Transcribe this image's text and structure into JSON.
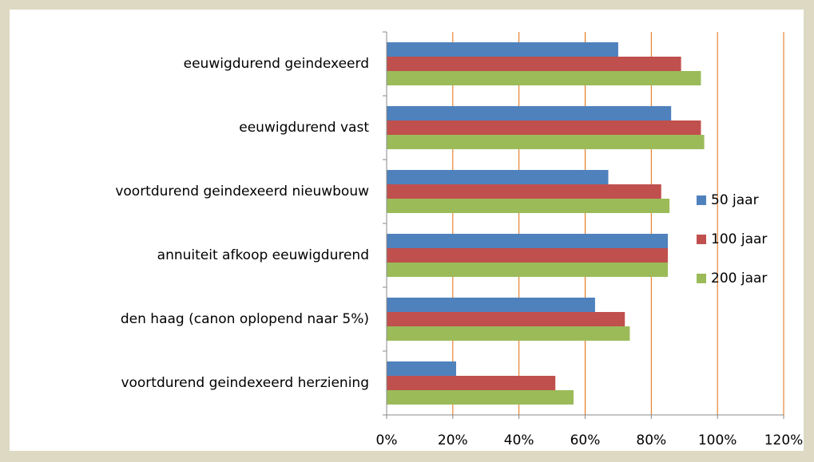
{
  "chart_data": {
    "type": "hbar",
    "categories": [
      "eeuwigdurend geindexeerd",
      "eeuwigdurend vast",
      "voortdurend geindexeerd nieuwbouw",
      "annuiteit afkoop eeuwigdurend",
      "den haag (canon oplopend naar 5%)",
      "voortdurend geindexeerd herziening"
    ],
    "series": [
      {
        "name": "50 jaar",
        "color": "#4f81bd",
        "values": [
          70,
          86,
          67,
          85,
          63,
          21
        ]
      },
      {
        "name": "100 jaar",
        "color": "#c0504d",
        "values": [
          89,
          95,
          83,
          85,
          72,
          51
        ]
      },
      {
        "name": "200 jaar",
        "color": "#9bbb59",
        "values": [
          95,
          96,
          85.5,
          85,
          73.5,
          56.5
        ]
      }
    ],
    "xlim": [
      0,
      120
    ],
    "xticks": [
      {
        "value": 0,
        "label": "0%"
      },
      {
        "value": 20,
        "label": "20%"
      },
      {
        "value": 40,
        "label": "40%"
      },
      {
        "value": 60,
        "label": "60%"
      },
      {
        "value": 80,
        "label": "80%"
      },
      {
        "value": 100,
        "label": "100%"
      },
      {
        "value": 120,
        "label": "120%"
      }
    ],
    "grid": true,
    "grid_color": "#e46c0a",
    "legend": "right"
  }
}
